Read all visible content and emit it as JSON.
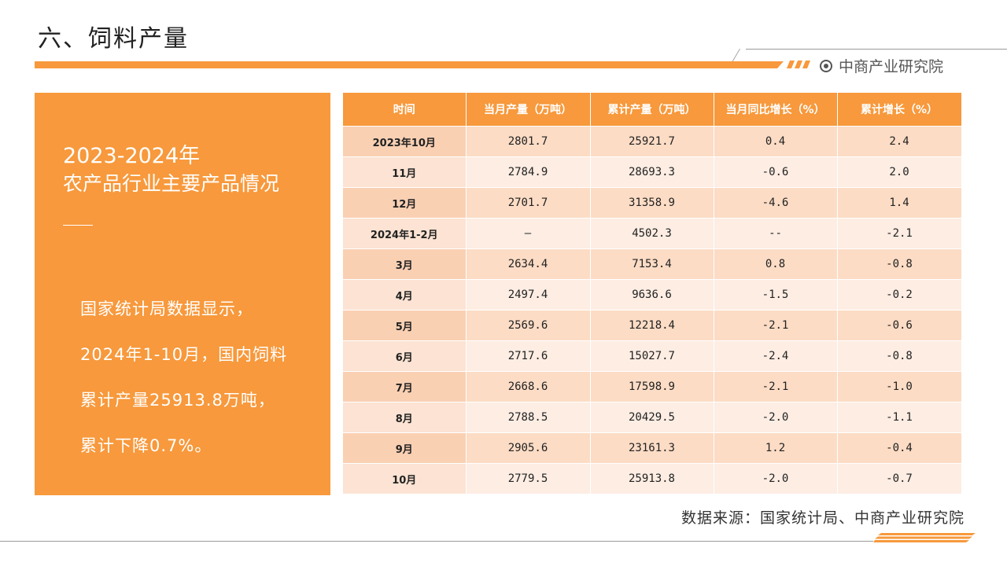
{
  "header": {
    "title": "六、饲料产量",
    "brand_name": "中商产业研究院",
    "accent_color": "#F7993C"
  },
  "panel": {
    "title_line1": "2023-2024年",
    "title_line2": "农产品行业主要产品情况",
    "text_lines": [
      "国家统计局数据显示，",
      "2024年1-10月，国内饲料",
      "累计产量25913.8万吨，",
      "累计下降0.7%。"
    ]
  },
  "table": {
    "headers": [
      "时间",
      "当月产量（万吨）",
      "累计产量（万吨）",
      "当月同比增长（%）",
      "累计增长（%）"
    ],
    "rows": [
      [
        "2023年10月",
        "2801.7",
        "25921.7",
        "0.4",
        "2.4"
      ],
      [
        "11月",
        "2784.9",
        "28693.3",
        "-0.6",
        "2.0"
      ],
      [
        "12月",
        "2701.7",
        "31358.9",
        "-4.6",
        "1.4"
      ],
      [
        "2024年1-2月",
        "—",
        "4502.3",
        "--",
        "-2.1"
      ],
      [
        "3月",
        "2634.4",
        "7153.4",
        "0.8",
        "-0.8"
      ],
      [
        "4月",
        "2497.4",
        "9636.6",
        "-1.5",
        "-0.2"
      ],
      [
        "5月",
        "2569.6",
        "12218.4",
        "-2.1",
        "-0.6"
      ],
      [
        "6月",
        "2717.6",
        "15027.7",
        "-2.4",
        "-0.8"
      ],
      [
        "7月",
        "2668.6",
        "17598.9",
        "-2.1",
        "-1.0"
      ],
      [
        "8月",
        "2788.5",
        "20429.5",
        "-2.0",
        "-1.1"
      ],
      [
        "9月",
        "2905.6",
        "23161.3",
        "1.2",
        "-0.4"
      ],
      [
        "10月",
        "2779.5",
        "25913.8",
        "-2.0",
        "-0.7"
      ]
    ]
  },
  "footer": {
    "source": "数据来源：国家统计局、中商产业研究院"
  }
}
